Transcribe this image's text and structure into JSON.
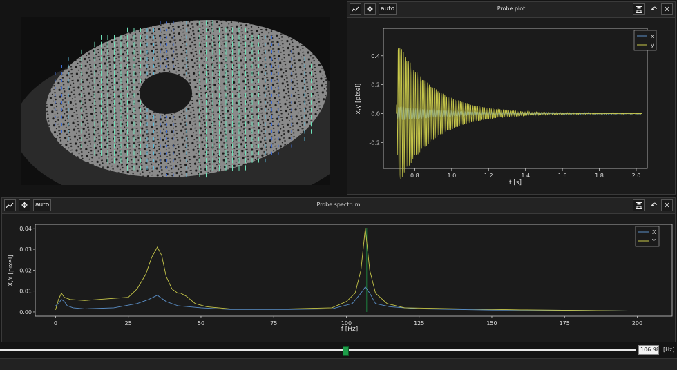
{
  "probe_plot": {
    "title": "Probe plot",
    "auto_label": "auto",
    "chart_data": {
      "type": "line",
      "xlabel": "t [s]",
      "ylabel": "x,y [pixel]",
      "xlim": [
        0.63,
        2.06
      ],
      "ylim": [
        -0.38,
        0.59
      ],
      "xticks": [
        "0.8",
        "1.0",
        "1.2",
        "1.4",
        "1.6",
        "1.8",
        "2.0"
      ],
      "yticks": [
        "-0.2",
        "0.0",
        "0.2",
        "0.4"
      ],
      "legend_position": "top-right",
      "series": [
        {
          "name": "x",
          "color": "#5b8fc7",
          "kind": "time",
          "amp": 0.05,
          "decay": 3.0,
          "noise": 0.006
        },
        {
          "name": "y",
          "color": "#c8c84a",
          "kind": "time",
          "amp": 0.52,
          "decay": 5.2,
          "noise": 0.005
        }
      ]
    }
  },
  "probe_spectrum": {
    "title": "Probe spectrum",
    "auto_label": "auto",
    "chart_data": {
      "type": "line",
      "xlabel": "f [Hz]",
      "ylabel": "X,Y [pixel]",
      "xlim": [
        -7,
        212
      ],
      "ylim": [
        -0.002,
        0.0419
      ],
      "xticks": [
        "0",
        "25",
        "50",
        "75",
        "100",
        "125",
        "150",
        "175",
        "200"
      ],
      "yticks": [
        "0.00",
        "0.01",
        "0.02",
        "0.03",
        "0.04"
      ],
      "legend_position": "top-right",
      "marker_frequency": 106.98,
      "series": [
        {
          "name": "X",
          "color": "#5b8fc7",
          "points": [
            [
              0,
              0.003
            ],
            [
              1,
              0.004
            ],
            [
              2,
              0.006
            ],
            [
              3,
              0.005
            ],
            [
              4,
              0.003
            ],
            [
              6,
              0.002
            ],
            [
              10,
              0.0015
            ],
            [
              20,
              0.002
            ],
            [
              28,
              0.004
            ],
            [
              32,
              0.006
            ],
            [
              35,
              0.008
            ],
            [
              38,
              0.005
            ],
            [
              42,
              0.003
            ],
            [
              50,
              0.002
            ],
            [
              60,
              0.0012
            ],
            [
              80,
              0.0012
            ],
            [
              95,
              0.0015
            ],
            [
              102,
              0.004
            ],
            [
              105,
              0.009
            ],
            [
              106.5,
              0.012
            ],
            [
              108,
              0.009
            ],
            [
              110,
              0.004
            ],
            [
              115,
              0.0025
            ],
            [
              125,
              0.0015
            ],
            [
              150,
              0.0009
            ],
            [
              175,
              0.0008
            ],
            [
              197,
              0.0005
            ]
          ]
        },
        {
          "name": "Y",
          "color": "#c8c84a",
          "points": [
            [
              0,
              0.001
            ],
            [
              1,
              0.006
            ],
            [
              2,
              0.009
            ],
            [
              3,
              0.007
            ],
            [
              5,
              0.006
            ],
            [
              10,
              0.0055
            ],
            [
              20,
              0.0065
            ],
            [
              25,
              0.007
            ],
            [
              28,
              0.011
            ],
            [
              31,
              0.018
            ],
            [
              33,
              0.026
            ],
            [
              35,
              0.031
            ],
            [
              36.5,
              0.027
            ],
            [
              38,
              0.017
            ],
            [
              40,
              0.011
            ],
            [
              42,
              0.009
            ],
            [
              43,
              0.009
            ],
            [
              45,
              0.0075
            ],
            [
              48,
              0.004
            ],
            [
              52,
              0.0025
            ],
            [
              60,
              0.0015
            ],
            [
              80,
              0.0015
            ],
            [
              95,
              0.002
            ],
            [
              100,
              0.005
            ],
            [
              103,
              0.009
            ],
            [
              105,
              0.02
            ],
            [
              106.5,
              0.04
            ],
            [
              108,
              0.02
            ],
            [
              110,
              0.009
            ],
            [
              114,
              0.004
            ],
            [
              120,
              0.002
            ],
            [
              140,
              0.0015
            ],
            [
              160,
              0.001
            ],
            [
              197,
              0.0005
            ]
          ]
        }
      ]
    }
  },
  "slider": {
    "value_text": "106.98",
    "unit": "[Hz]",
    "position": 0.51
  },
  "colors": {
    "background": "#141414",
    "plot_background": "#1b1b1b",
    "axes": "#cccccc",
    "series_x": "#5b8fc7",
    "series_y": "#c8c84a",
    "slider_handle": "#1e9e4a"
  }
}
